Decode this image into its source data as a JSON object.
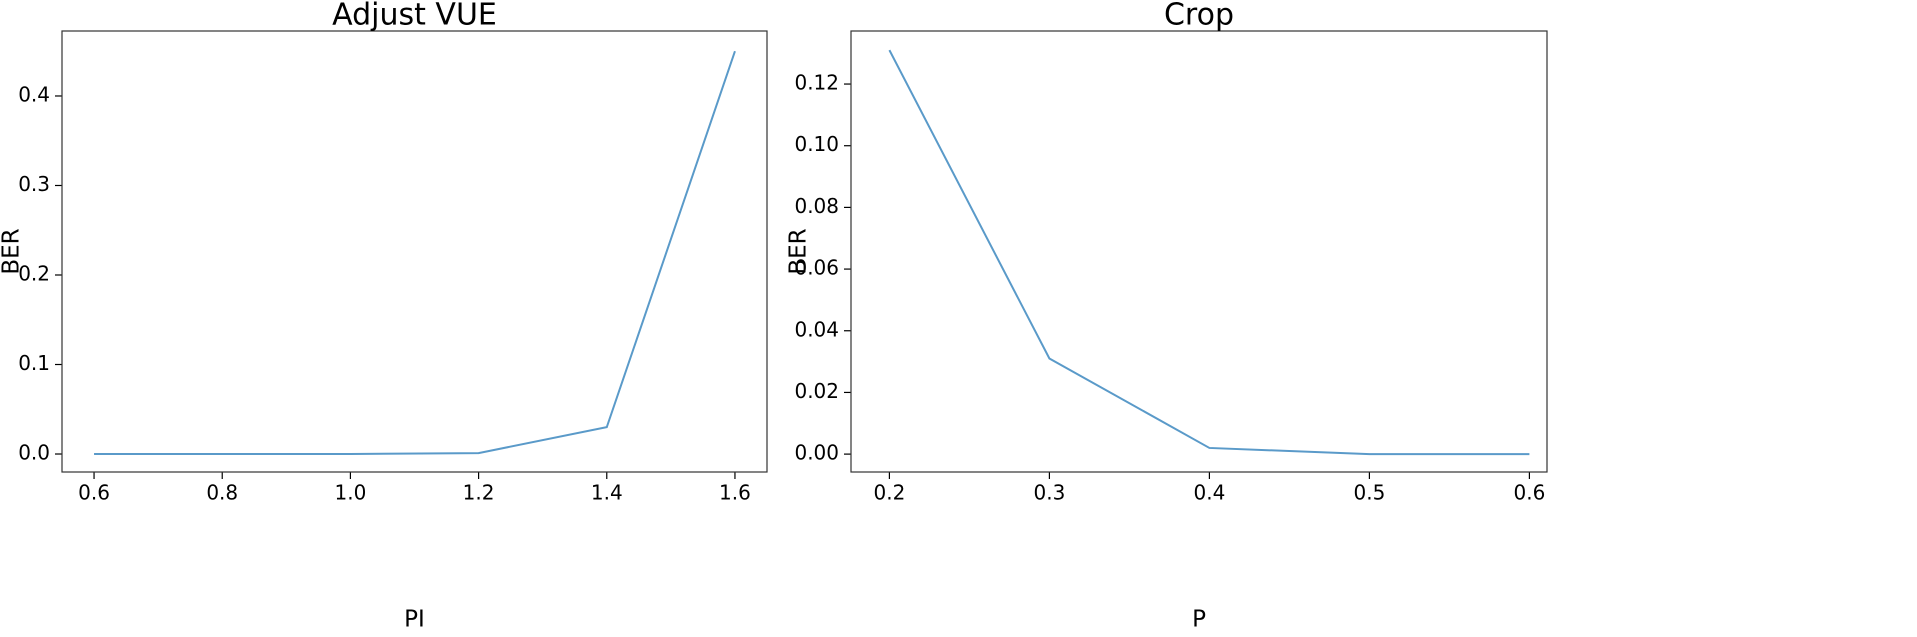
{
  "chart_data": [
    {
      "type": "line",
      "title": "Adjust VUE",
      "xlabel": "PI",
      "ylabel": "BER",
      "x": [
        0.6,
        0.8,
        1.0,
        1.2,
        1.4,
        1.6
      ],
      "series": [
        {
          "color": "#5a9ac9",
          "values": [
            0,
            0,
            0,
            0.001,
            0.03,
            0.45
          ]
        }
      ],
      "xlim": [
        0.55,
        1.65
      ],
      "ylim": [
        -0.0201,
        0.4726
      ],
      "xticks": [
        0.6,
        0.8,
        {
          "value": 1,
          "label": "1.0"
        },
        1.2,
        1.4,
        1.6
      ],
      "yticks": [
        {
          "value": 0,
          "label": "0.0"
        },
        0.1,
        0.2,
        0.3,
        0.4
      ],
      "grid": false
    },
    {
      "type": "line",
      "title": "Crop",
      "xlabel": "P",
      "ylabel": "BER",
      "x": [
        0.2,
        0.3,
        0.4,
        0.5,
        0.6
      ],
      "series": [
        {
          "color": "#5a9ac9",
          "values": [
            0.131,
            0.031,
            0.002,
            0,
            0
          ]
        }
      ],
      "xlim": [
        0.176,
        0.611
      ],
      "ylim": [
        -0.0058,
        0.1372
      ],
      "xticks": [
        0.2,
        0.3,
        0.4,
        0.5,
        0.6
      ],
      "yticks": [
        {
          "value": 0,
          "label": "0.00"
        },
        0.02,
        0.04,
        0.06,
        0.08,
        {
          "value": 0.1,
          "label": "0.10"
        },
        0.12
      ],
      "grid": false
    }
  ]
}
